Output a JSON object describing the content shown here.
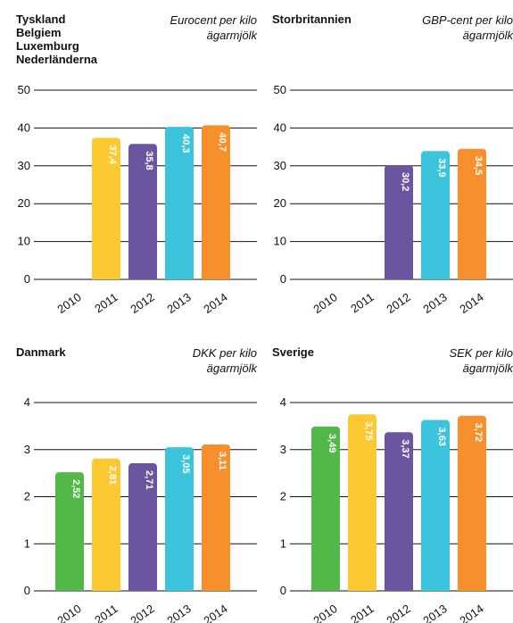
{
  "chart_data": [
    {
      "type": "bar",
      "title_lines": [
        "Tyskland",
        "Belgiem",
        "Luxemburg",
        "Nederländerna"
      ],
      "unit_lines": [
        "Eurocent per kilo",
        "ägarmjölk"
      ],
      "categories": [
        "2010",
        "2011",
        "2012",
        "2013",
        "2014"
      ],
      "values": [
        null,
        37.4,
        35.8,
        40.3,
        40.7
      ],
      "value_labels": [
        "",
        "37,4",
        "35,8",
        "40,3",
        "40,7"
      ],
      "yticks": [
        0,
        10,
        20,
        30,
        40,
        50
      ],
      "ylim": [
        0,
        50
      ],
      "grid": true
    },
    {
      "type": "bar",
      "title_lines": [
        "Storbritannien"
      ],
      "unit_lines": [
        "GBP-cent per kilo",
        "ägarmjölk"
      ],
      "categories": [
        "2010",
        "2011",
        "2012",
        "2013",
        "2014"
      ],
      "values": [
        null,
        null,
        30.2,
        33.9,
        34.5
      ],
      "value_labels": [
        "",
        "",
        "30,2",
        "33,9",
        "34,5"
      ],
      "yticks": [
        0,
        10,
        20,
        30,
        40,
        50
      ],
      "ylim": [
        0,
        50
      ],
      "grid": true
    },
    {
      "type": "bar",
      "title_lines": [
        "Danmark"
      ],
      "unit_lines": [
        "DKK per kilo",
        "ägarmjölk"
      ],
      "categories": [
        "2010",
        "2011",
        "2012",
        "2013",
        "2014"
      ],
      "values": [
        2.52,
        2.81,
        2.71,
        3.05,
        3.11
      ],
      "value_labels": [
        "2,52",
        "2,81",
        "2,71",
        "3,05",
        "3,11"
      ],
      "yticks": [
        0,
        1,
        2,
        3,
        4
      ],
      "ylim": [
        0,
        4
      ],
      "grid": true
    },
    {
      "type": "bar",
      "title_lines": [
        "Sverige"
      ],
      "unit_lines": [
        "SEK per kilo",
        "ägarmjölk"
      ],
      "categories": [
        "2010",
        "2011",
        "2012",
        "2013",
        "2014"
      ],
      "values": [
        3.49,
        3.75,
        3.37,
        3.63,
        3.72
      ],
      "value_labels": [
        "3,49",
        "3,75",
        "3,37",
        "3,63",
        "3,72"
      ],
      "yticks": [
        0,
        1,
        2,
        3,
        4
      ],
      "ylim": [
        0,
        4
      ],
      "grid": true
    }
  ],
  "colors": {
    "2010": "#52b848",
    "2011": "#fdc932",
    "2012": "#6b55a0",
    "2013": "#3cc4dc",
    "2014": "#f7902c",
    "grid": "#111111",
    "value_label": "#ffffff"
  }
}
